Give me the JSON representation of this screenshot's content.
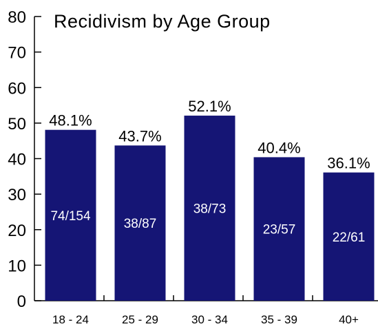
{
  "chart_data": {
    "type": "bar",
    "title": "Recidivism by Age Group",
    "xlabel": "",
    "ylabel": "",
    "categories": [
      "18 - 24",
      "25 - 29",
      "30 - 34",
      "35 - 39",
      "40+"
    ],
    "values": [
      48.1,
      43.7,
      52.1,
      40.4,
      36.1
    ],
    "value_labels": [
      "48.1%",
      "43.7%",
      "52.1%",
      "40.4%",
      "36.1%"
    ],
    "ratio_labels": [
      "74/154",
      "38/87",
      "38/73",
      "23/57",
      "22/61"
    ],
    "ylim": [
      0,
      80
    ],
    "yticks": [
      "0",
      "10",
      "20",
      "30",
      "40",
      "50",
      "60",
      "70",
      "80"
    ],
    "grid": false,
    "legend": "none",
    "colors": {
      "bar": "#151575",
      "axis": "#000000",
      "text": "#000000",
      "ratio_text": "#ffffff"
    }
  }
}
